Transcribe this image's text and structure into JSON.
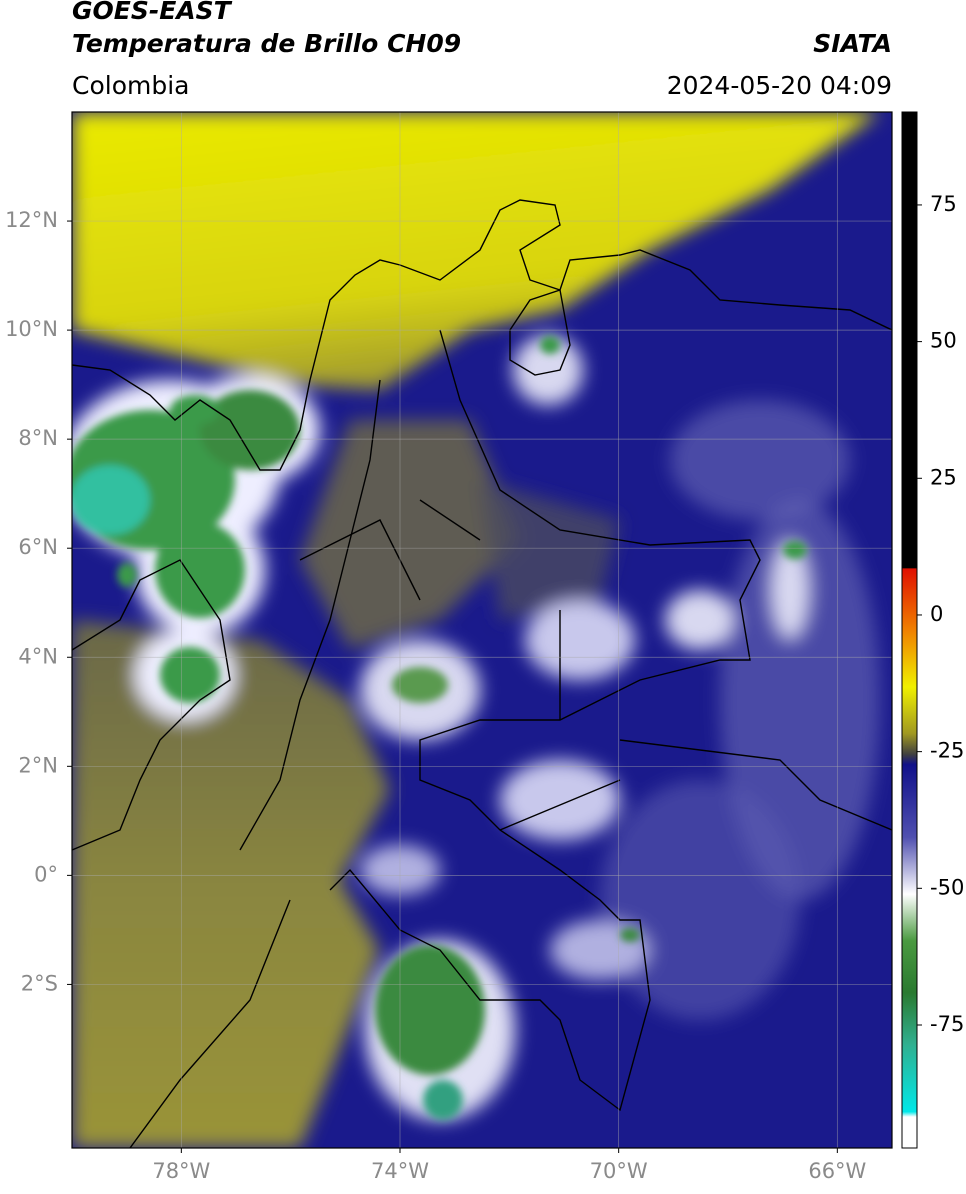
{
  "header": {
    "title1": "GOES-EAST",
    "title2": "Temperatura de Brillo CH09",
    "source": "SIATA",
    "region": "Colombia",
    "datetime": "2024-05-20 04:09"
  },
  "map": {
    "xlim": [
      -80,
      -65
    ],
    "ylim": [
      -5,
      14
    ],
    "xticks": [
      {
        "value": -78,
        "label": "78°W"
      },
      {
        "value": -74,
        "label": "74°W"
      },
      {
        "value": -70,
        "label": "70°W"
      },
      {
        "value": -66,
        "label": "66°W"
      }
    ],
    "yticks": [
      {
        "value": 12,
        "label": "12°N"
      },
      {
        "value": 10,
        "label": "10°N"
      },
      {
        "value": 8,
        "label": "8°N"
      },
      {
        "value": 6,
        "label": "6°N"
      },
      {
        "value": 4,
        "label": "4°N"
      },
      {
        "value": 2,
        "label": "2°N"
      },
      {
        "value": 0,
        "label": "0°"
      },
      {
        "value": -2,
        "label": "2°S"
      }
    ],
    "grid": true
  },
  "colorbar": {
    "lim": [
      -97.5,
      92
    ],
    "ticks": [
      75,
      50,
      25,
      0,
      -25,
      -50,
      -75
    ]
  }
}
